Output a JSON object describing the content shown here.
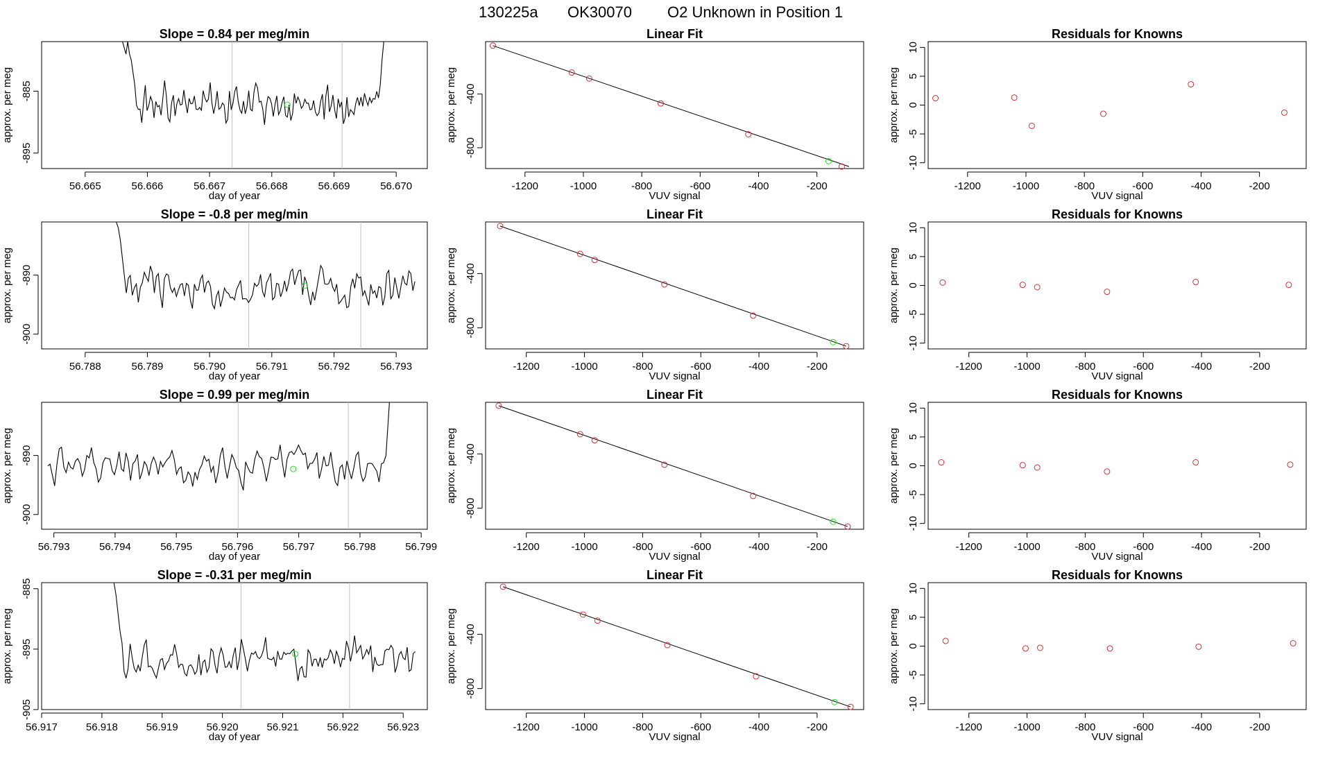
{
  "page": {
    "run_id": "130225a",
    "sample": "OK30070",
    "description": "O2 Unknown in Position  1"
  },
  "colors": {
    "line": "#000000",
    "known_marker": "#cd3333",
    "unknown_marker": "#22dd22",
    "vline": "#bebebe"
  },
  "labels": {
    "ts_xlabel": "day of year",
    "ts_ylabel": "approx. per meg",
    "fit_title": "Linear Fit",
    "fit_xlabel": "VUV signal",
    "fit_ylabel": "approx. per meg",
    "res_title": "Residuals for Knowns",
    "res_xlabel": "VUV signal",
    "res_ylabel": "approx. per meg"
  },
  "chart_data": [
    {
      "row": 1,
      "timeseries": {
        "type": "line",
        "title": "Slope =  0.84  per meg/min",
        "xlim": [
          56.6643,
          56.6705
        ],
        "ylim": [
          -897.5,
          -877
        ],
        "xticks": [
          56.665,
          56.666,
          56.667,
          56.668,
          56.669,
          56.67
        ],
        "xtick_labels": [
          "56.665",
          "56.666",
          "56.667",
          "56.668",
          "56.669",
          "56.670"
        ],
        "yticks": [
          -885,
          -895
        ],
        "ytick_labels": [
          "-885",
          "-895"
        ],
        "x_start": 56.6656,
        "x_end": 56.6698,
        "entry": [
          -877,
          -878,
          -879,
          -877,
          -879,
          -880,
          -882,
          -884
        ],
        "exit": [
          -884,
          -880,
          -877
        ],
        "mean": -887.2,
        "amp": 2.6,
        "seed": 11,
        "vlines": [
          56.66736,
          56.66913
        ],
        "unknown_point": [
          56.66825,
          -887.2
        ]
      },
      "linear_fit": {
        "type": "scatter",
        "title": "Linear Fit",
        "xlim": [
          -1335,
          -40
        ],
        "ylim": [
          -955,
          -10
        ],
        "xticks": [
          -1200,
          -1000,
          -800,
          -600,
          -400,
          -200
        ],
        "yticks": [
          -400,
          -800
        ],
        "fit_line": [
          [
            -1310,
            -40
          ],
          [
            -90,
            -940
          ]
        ],
        "knowns": [
          [
            -1310,
            -40
          ],
          [
            -1040,
            -240
          ],
          [
            -980,
            -285
          ],
          [
            -735,
            -470
          ],
          [
            -435,
            -700
          ],
          [
            -115,
            -940
          ]
        ],
        "unknown": [
          [
            -160,
            -900
          ]
        ]
      },
      "residuals": {
        "type": "scatter",
        "title": "Residuals for Knowns",
        "xlim": [
          -1335,
          -40
        ],
        "ylim": [
          -11,
          11
        ],
        "xticks": [
          -1200,
          -1000,
          -800,
          -600,
          -400,
          -200
        ],
        "yticks": [
          10,
          5,
          0,
          -5,
          -10
        ],
        "points": [
          [
            -1310,
            1.2
          ],
          [
            -1040,
            1.3
          ],
          [
            -980,
            -3.6
          ],
          [
            -735,
            -1.5
          ],
          [
            -435,
            3.6
          ],
          [
            -115,
            -1.3
          ]
        ]
      }
    },
    {
      "row": 2,
      "timeseries": {
        "type": "line",
        "title": "Slope =  -0.8  per meg/min",
        "xlim": [
          56.7873,
          56.7935
        ],
        "ylim": [
          -902.5,
          -881
        ],
        "xticks": [
          56.788,
          56.789,
          56.79,
          56.791,
          56.792,
          56.793
        ],
        "xtick_labels": [
          "56.788",
          "56.789",
          "56.790",
          "56.791",
          "56.792",
          "56.793"
        ],
        "yticks": [
          -890,
          -900
        ],
        "ytick_labels": [
          "-890",
          "-900"
        ],
        "x_start": 56.7885,
        "x_end": 56.7933,
        "entry": [
          -881,
          -882,
          -884,
          -887,
          -890
        ],
        "exit": [],
        "mean": -892.3,
        "amp": 2.5,
        "seed": 23,
        "vlines": [
          56.79063,
          56.79243
        ],
        "unknown_point": [
          56.79153,
          -891.8
        ]
      },
      "linear_fit": {
        "type": "scatter",
        "title": "Linear Fit",
        "xlim": [
          -1340,
          -40
        ],
        "ylim": [
          -955,
          -20
        ],
        "xticks": [
          -1200,
          -1000,
          -800,
          -600,
          -400,
          -200
        ],
        "yticks": [
          -400,
          -800
        ],
        "fit_line": [
          [
            -1290,
            -50
          ],
          [
            -100,
            -935
          ]
        ],
        "knowns": [
          [
            -1290,
            -50
          ],
          [
            -1015,
            -255
          ],
          [
            -965,
            -300
          ],
          [
            -725,
            -480
          ],
          [
            -420,
            -710
          ],
          [
            -100,
            -935
          ]
        ],
        "unknown": [
          [
            -145,
            -905
          ]
        ]
      },
      "residuals": {
        "type": "scatter",
        "title": "Residuals for Knowns",
        "xlim": [
          -1340,
          -40
        ],
        "ylim": [
          -11,
          11
        ],
        "xticks": [
          -1200,
          -1000,
          -800,
          -600,
          -400,
          -200
        ],
        "yticks": [
          10,
          5,
          0,
          -5,
          -10
        ],
        "points": [
          [
            -1290,
            0.5
          ],
          [
            -1015,
            0.1
          ],
          [
            -965,
            -0.3
          ],
          [
            -725,
            -1.1
          ],
          [
            -420,
            0.6
          ],
          [
            -100,
            0.1
          ]
        ]
      }
    },
    {
      "row": 3,
      "timeseries": {
        "type": "line",
        "title": "Slope =  0.99  per meg/min",
        "xlim": [
          56.7928,
          56.7991
        ],
        "ylim": [
          -902.5,
          -881
        ],
        "xticks": [
          56.793,
          56.794,
          56.795,
          56.796,
          56.797,
          56.798,
          56.799
        ],
        "xtick_labels": [
          "56.793",
          "56.794",
          "56.795",
          "56.796",
          "56.797",
          "56.798",
          "56.799"
        ],
        "yticks": [
          -890,
          -900
        ],
        "ytick_labels": [
          "-890",
          "-900"
        ],
        "x_start": 56.7929,
        "x_end": 56.7985,
        "entry": [],
        "exit": [
          -890,
          -884,
          -878
        ],
        "mean": -891.8,
        "amp": 2.6,
        "seed": 37,
        "vlines": [
          56.79601,
          56.79781
        ],
        "unknown_point": [
          56.79691,
          -892.3
        ]
      },
      "linear_fit": {
        "type": "scatter",
        "title": "Linear Fit",
        "xlim": [
          -1340,
          -40
        ],
        "ylim": [
          -955,
          -20
        ],
        "xticks": [
          -1200,
          -1000,
          -800,
          -600,
          -400,
          -200
        ],
        "yticks": [
          -400,
          -800
        ],
        "fit_line": [
          [
            -1295,
            -45
          ],
          [
            -95,
            -935
          ]
        ],
        "knowns": [
          [
            -1295,
            -45
          ],
          [
            -1015,
            -255
          ],
          [
            -965,
            -300
          ],
          [
            -725,
            -480
          ],
          [
            -420,
            -710
          ],
          [
            -95,
            -935
          ]
        ],
        "unknown": [
          [
            -145,
            -900
          ]
        ]
      },
      "residuals": {
        "type": "scatter",
        "title": "Residuals for Knowns",
        "xlim": [
          -1340,
          -40
        ],
        "ylim": [
          -11,
          11
        ],
        "xticks": [
          -1200,
          -1000,
          -800,
          -600,
          -400,
          -200
        ],
        "yticks": [
          10,
          5,
          0,
          -5,
          -10
        ],
        "points": [
          [
            -1295,
            0.6
          ],
          [
            -1015,
            0.1
          ],
          [
            -965,
            -0.3
          ],
          [
            -725,
            -1.0
          ],
          [
            -420,
            0.6
          ],
          [
            -95,
            0.2
          ]
        ]
      }
    },
    {
      "row": 4,
      "timeseries": {
        "type": "line",
        "title": "Slope =  -0.31  per meg/min",
        "xlim": [
          56.917,
          56.9234
        ],
        "ylim": [
          -905,
          -884
        ],
        "xticks": [
          56.917,
          56.918,
          56.919,
          56.92,
          56.921,
          56.922,
          56.923
        ],
        "xtick_labels": [
          "56.917",
          "56.918",
          "56.919",
          "56.920",
          "56.921",
          "56.922",
          "56.923"
        ],
        "yticks": [
          -885,
          -895,
          -905
        ],
        "ytick_labels": [
          "-885",
          "-895",
          "-905"
        ],
        "x_start": 56.9182,
        "x_end": 56.9232,
        "entry": [
          -884,
          -886,
          -889,
          -892,
          -894
        ],
        "exit": [],
        "mean": -896.4,
        "amp": 2.6,
        "seed": 51,
        "vlines": [
          56.92031,
          56.92211
        ],
        "unknown_point": [
          56.92121,
          -895.8
        ]
      },
      "linear_fit": {
        "type": "scatter",
        "title": "Linear Fit",
        "xlim": [
          -1340,
          -40
        ],
        "ylim": [
          -955,
          -20
        ],
        "xticks": [
          -1200,
          -1000,
          -800,
          -600,
          -400,
          -200
        ],
        "yticks": [
          -400,
          -800
        ],
        "fit_line": [
          [
            -1280,
            -50
          ],
          [
            -85,
            -935
          ]
        ],
        "knowns": [
          [
            -1280,
            -50
          ],
          [
            -1005,
            -255
          ],
          [
            -955,
            -300
          ],
          [
            -715,
            -480
          ],
          [
            -410,
            -710
          ],
          [
            -85,
            -935
          ]
        ],
        "unknown": [
          [
            -140,
            -900
          ]
        ]
      },
      "residuals": {
        "type": "scatter",
        "title": "Residuals for Knowns",
        "xlim": [
          -1340,
          -40
        ],
        "ylim": [
          -11,
          11
        ],
        "xticks": [
          -1200,
          -1000,
          -800,
          -600,
          -400,
          -200
        ],
        "yticks": [
          10,
          5,
          0,
          -5,
          -10
        ],
        "points": [
          [
            -1280,
            0.9
          ],
          [
            -1005,
            -0.4
          ],
          [
            -955,
            -0.3
          ],
          [
            -715,
            -0.4
          ],
          [
            -410,
            -0.1
          ],
          [
            -85,
            0.5
          ]
        ]
      }
    }
  ]
}
